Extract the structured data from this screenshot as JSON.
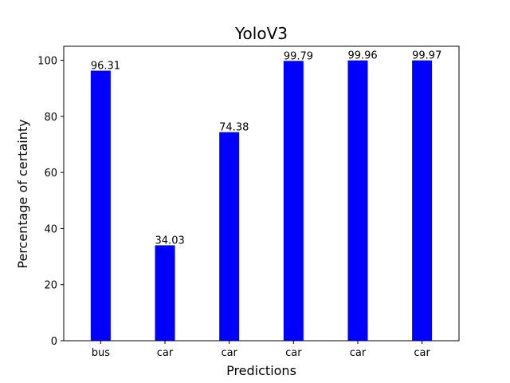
{
  "chart_data": {
    "type": "bar",
    "title": "YoloV3",
    "xlabel": "Predictions",
    "ylabel": "Percentage of certainty",
    "categories": [
      "bus",
      "car",
      "car",
      "car",
      "car",
      "car"
    ],
    "values": [
      96.31,
      34.03,
      74.38,
      99.79,
      99.96,
      99.97
    ],
    "value_labels": [
      "96.31",
      "34.03",
      "74.38",
      "99.79",
      "99.96",
      "99.97"
    ],
    "ylim": [
      0,
      105
    ],
    "yticks": [
      0,
      20,
      40,
      60,
      80,
      100
    ],
    "bar_color": "#0000ff",
    "grid": false,
    "legend": "none"
  }
}
